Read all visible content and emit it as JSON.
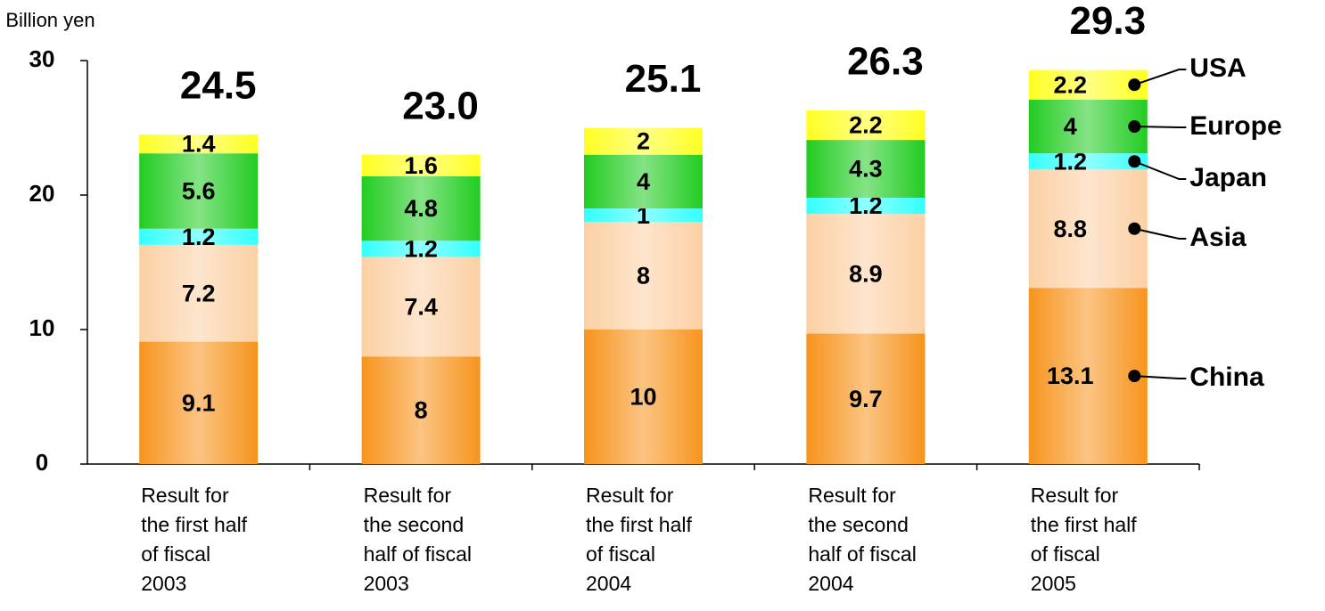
{
  "chart_data": {
    "type": "stacked-bar",
    "unit_label": "Unit: Billion yen",
    "categories": [
      "Result for\nthe first half\nof fiscal\n2003",
      "Result for\nthe second\nhalf of fiscal\n2003",
      "Result for\nthe first half\nof fiscal\n2004",
      "Result for\nthe second\nhalf of fiscal\n2004",
      "Result for\nthe first half\nof fiscal\n2005"
    ],
    "series": [
      {
        "name": "China",
        "color": "#f7941d",
        "values": [
          9.1,
          8,
          10,
          9.7,
          13.1
        ]
      },
      {
        "name": "Asia",
        "color": "#fcd0a4",
        "values": [
          7.2,
          7.4,
          8,
          8.9,
          8.8
        ]
      },
      {
        "name": "Japan",
        "color": "#33ffff",
        "values": [
          1.2,
          1.2,
          1,
          1.2,
          1.2
        ]
      },
      {
        "name": "Europe",
        "color": "#22cc22",
        "values": [
          5.6,
          4.8,
          4,
          4.3,
          4
        ]
      },
      {
        "name": "USA",
        "color": "#ffff22",
        "values": [
          1.4,
          1.6,
          2,
          2.2,
          2.2
        ]
      }
    ],
    "totals": [
      24.5,
      23,
      25.1,
      26.3,
      29.3
    ],
    "total_labels": [
      "24.5",
      "23.0",
      "25.1",
      "26.3",
      "29.3"
    ],
    "ylim": [
      0,
      30
    ],
    "yticks": [
      0,
      10,
      20,
      30
    ]
  }
}
